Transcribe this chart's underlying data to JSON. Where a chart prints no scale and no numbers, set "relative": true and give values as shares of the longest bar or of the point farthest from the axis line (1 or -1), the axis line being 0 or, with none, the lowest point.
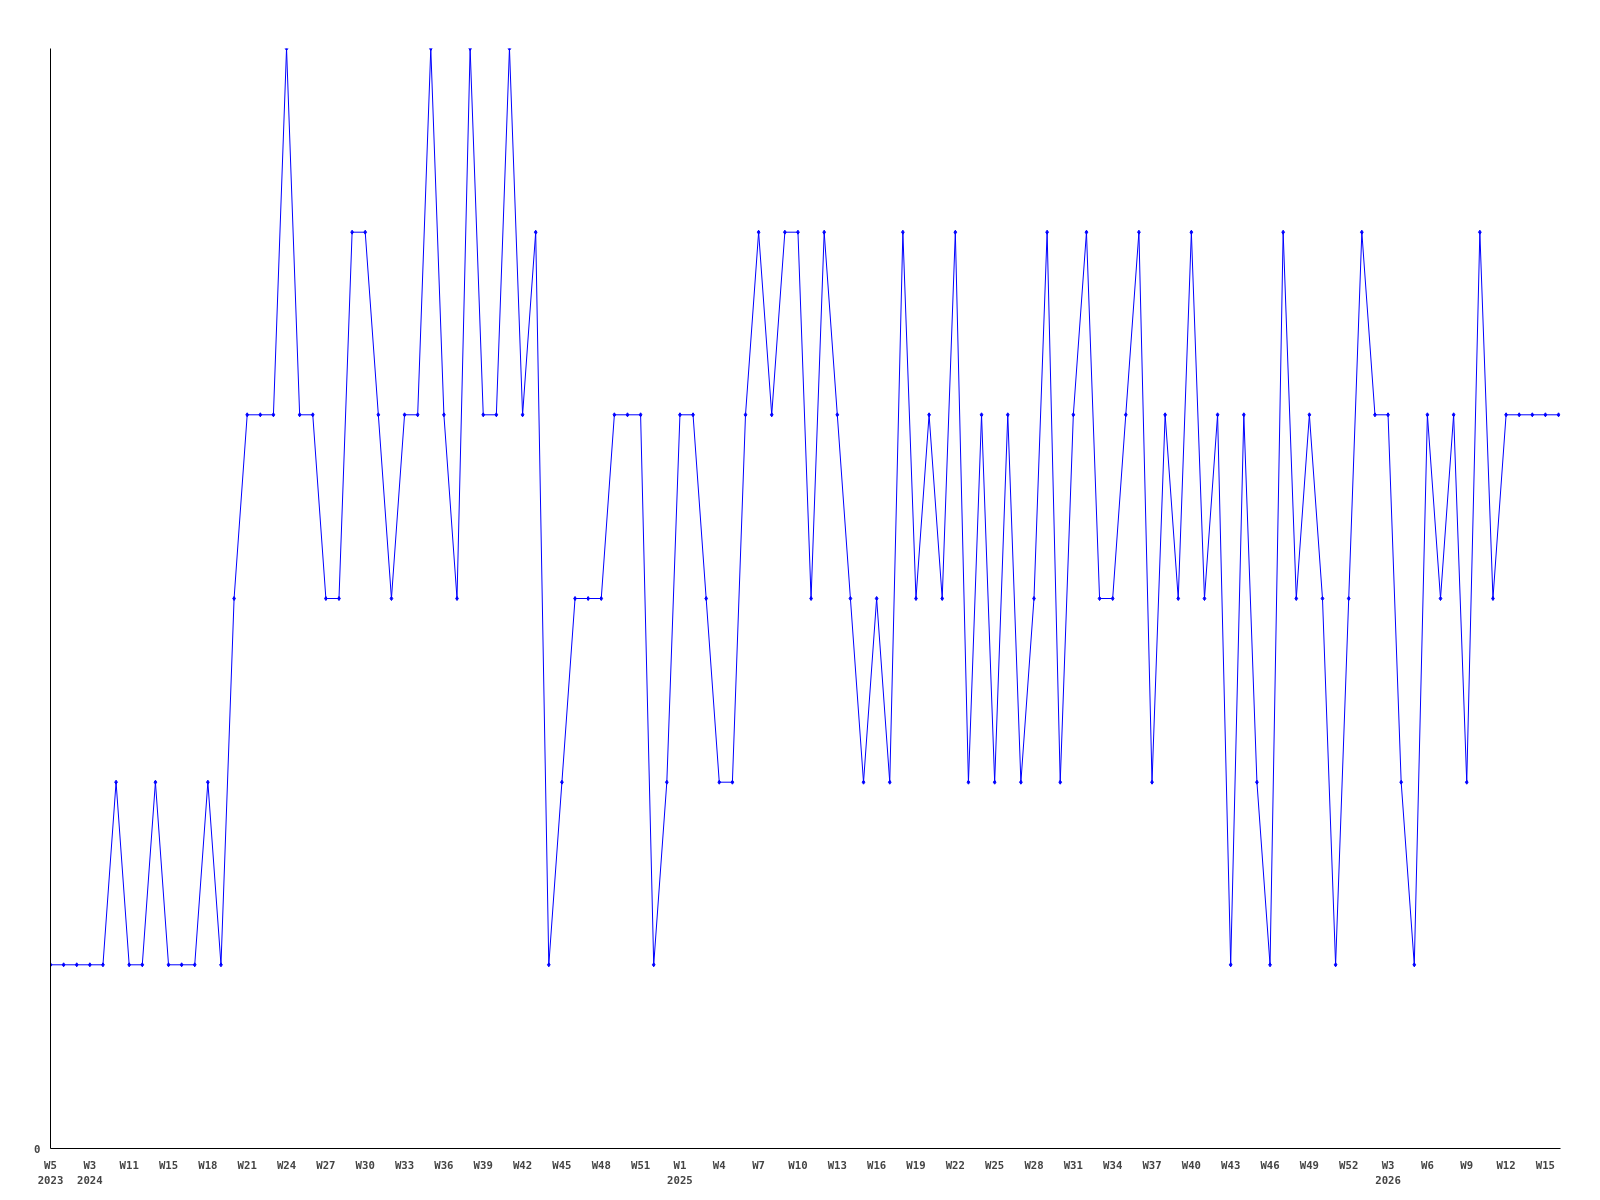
{
  "chart_data": {
    "type": "line",
    "relative": true,
    "annotations": [
      "0"
    ],
    "marker": "diamond",
    "line_style": "solid",
    "grid": false,
    "categories": [
      "W5\n2023",
      null,
      null,
      "W3\n2024",
      null,
      null,
      "W11",
      null,
      null,
      "W15",
      null,
      null,
      "W18",
      null,
      null,
      "W21",
      null,
      null,
      "W24",
      null,
      null,
      "W27",
      null,
      null,
      "W30",
      null,
      null,
      "W33",
      null,
      null,
      "W36",
      null,
      null,
      "W39",
      null,
      null,
      "W42",
      null,
      null,
      "W45",
      null,
      null,
      "W48",
      null,
      null,
      "W51",
      null,
      null,
      "W1\n2025",
      null,
      null,
      "W4",
      null,
      null,
      "W7",
      null,
      null,
      "W10",
      null,
      null,
      "W13",
      null,
      null,
      "W16",
      null,
      null,
      "W19",
      null,
      null,
      "W22",
      null,
      null,
      "W25",
      null,
      null,
      "W28",
      null,
      null,
      "W31",
      null,
      null,
      "W34",
      null,
      null,
      "W37",
      null,
      null,
      "W40",
      null,
      null,
      "W43",
      null,
      null,
      "W46",
      null,
      null,
      "W49",
      null,
      null,
      "W52",
      null,
      null,
      "W3\n2026",
      null,
      null,
      "W6",
      null,
      null,
      "W9",
      null,
      null,
      "W12",
      null,
      null,
      "W15",
      null
    ],
    "series": [
      {
        "color": "#0000ff",
        "values": [
          0.167,
          0.167,
          0.167,
          0.167,
          0.167,
          0.333,
          0.167,
          0.167,
          0.333,
          0.167,
          0.167,
          0.167,
          0.333,
          0.167,
          0.5,
          0.667,
          0.667,
          0.667,
          1,
          0.667,
          0.667,
          0.5,
          0.5,
          0.833,
          0.833,
          0.667,
          0.5,
          0.667,
          0.667,
          1,
          0.667,
          0.5,
          1,
          0.667,
          0.667,
          1,
          0.667,
          0.833,
          0.167,
          0.333,
          0.5,
          0.5,
          0.5,
          0.667,
          0.667,
          0.667,
          0.167,
          0.333,
          0.667,
          0.667,
          0.5,
          0.333,
          0.333,
          0.667,
          0.833,
          0.667,
          0.833,
          0.833,
          0.5,
          0.833,
          0.667,
          0.5,
          0.333,
          0.5,
          0.333,
          0.833,
          0.5,
          0.667,
          0.5,
          0.833,
          0.333,
          0.667,
          0.333,
          0.667,
          0.333,
          0.5,
          0.833,
          0.333,
          0.667,
          0.833,
          0.5,
          0.5,
          0.667,
          0.833,
          0.333,
          0.667,
          0.5,
          0.833,
          0.5,
          0.667,
          0.167,
          0.667,
          0.333,
          0.167,
          0.833,
          0.5,
          0.667,
          0.5,
          0.167,
          0.5,
          0.833,
          0.667,
          0.667,
          0.333,
          0.167,
          0.667,
          0.5,
          0.667,
          0.333,
          0.833,
          0.5,
          0.667,
          0.667,
          0.667,
          0.667,
          0.667
        ]
      }
    ]
  }
}
